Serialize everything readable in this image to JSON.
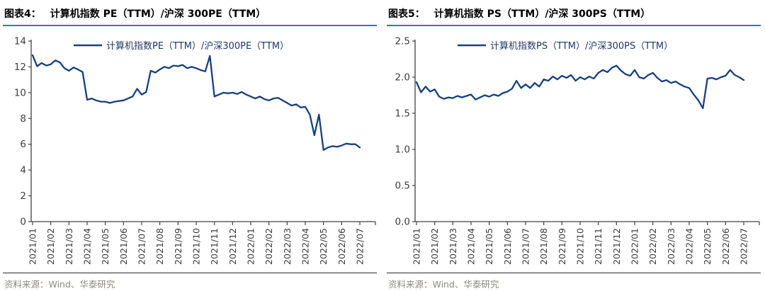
{
  "figure4": {
    "label": "图表4：",
    "title": "计算机指数 PE（TTM）/沪深 300PE（TTM）",
    "source": "资料来源：Wind、华泰研究"
  },
  "figure5": {
    "label": "图表5：",
    "title": "计算机指数 PS（TTM）/沪深 300PS（TTM）",
    "source": "资料来源：Wind、华泰研究"
  },
  "colors": {
    "series_line": "#16407f",
    "legend_text": "#1f3864",
    "title_underline": "#4a6fa4",
    "axis": "#404040",
    "tick_label": "#3d3d3d",
    "source_text": "#8b8a83",
    "source_rule": "#2b2b2b"
  },
  "chart_data": [
    {
      "id": "figure4",
      "type": "line",
      "title": "计算机指数 PE（TTM）/沪深 300PE（TTM）",
      "legend": "计算机指数PE（TTM）/沪深300PE（TTM）",
      "legend_position": "top-center",
      "grid": false,
      "ylim": [
        0,
        14
      ],
      "y_ticks": [
        "0",
        "2",
        "4",
        "6",
        "8",
        "10",
        "12",
        "14"
      ],
      "x_labels": [
        "2021/01",
        "2021/02",
        "2021/03",
        "2021/04",
        "2021/05",
        "2021/06",
        "2021/07",
        "2021/08",
        "2021/09",
        "2021/10",
        "2021/11",
        "2021/12",
        "2022/01",
        "2022/02",
        "2022/03",
        "2022/04",
        "2022/05",
        "2022/06",
        "2022/07"
      ],
      "points_per_month": 4,
      "values": [
        12.9,
        12.05,
        12.3,
        12.1,
        12.2,
        12.5,
        12.35,
        11.9,
        11.7,
        11.95,
        11.8,
        11.6,
        9.45,
        9.55,
        9.4,
        9.3,
        9.3,
        9.2,
        9.3,
        9.35,
        9.4,
        9.55,
        9.7,
        10.3,
        9.85,
        10.05,
        11.7,
        11.55,
        11.8,
        12.0,
        11.9,
        12.1,
        12.05,
        12.15,
        11.9,
        12.0,
        11.9,
        11.75,
        11.65,
        12.85,
        9.7,
        9.85,
        10.0,
        9.95,
        10.0,
        9.9,
        10.05,
        9.85,
        9.7,
        9.55,
        9.7,
        9.5,
        9.4,
        9.55,
        9.6,
        9.4,
        9.2,
        9.0,
        9.1,
        8.85,
        8.9,
        8.3,
        6.7,
        8.3,
        5.55,
        5.75,
        5.85,
        5.8,
        5.9,
        6.05,
        6.0,
        6.0,
        5.75
      ],
      "line_color": "#16407f"
    },
    {
      "id": "figure5",
      "type": "line",
      "title": "计算机指数 PS（TTM）/沪深 300PS（TTM）",
      "legend": "计算机指数PS（TTM）/沪深300PS（TTM）",
      "legend_position": "top-center",
      "grid": false,
      "ylim": [
        0,
        2.5
      ],
      "y_ticks": [
        "0.0",
        "0.5",
        "1.0",
        "1.5",
        "2.0",
        "2.5"
      ],
      "x_labels": [
        "2021/01",
        "2021/02",
        "2021/03",
        "2021/04",
        "2021/05",
        "2021/06",
        "2021/07",
        "2021/08",
        "2021/09",
        "2021/10",
        "2021/11",
        "2021/12",
        "2022/01",
        "2022/02",
        "2022/03",
        "2022/04",
        "2022/05",
        "2022/06",
        "2022/07"
      ],
      "points_per_month": 4,
      "values": [
        1.93,
        1.79,
        1.87,
        1.8,
        1.83,
        1.73,
        1.7,
        1.72,
        1.71,
        1.74,
        1.72,
        1.74,
        1.76,
        1.69,
        1.72,
        1.75,
        1.73,
        1.76,
        1.74,
        1.78,
        1.8,
        1.84,
        1.95,
        1.85,
        1.9,
        1.85,
        1.92,
        1.87,
        1.97,
        1.95,
        2.01,
        1.97,
        2.02,
        1.99,
        2.03,
        1.95,
        2.0,
        1.97,
        2.01,
        1.98,
        2.06,
        2.1,
        2.07,
        2.13,
        2.16,
        2.09,
        2.04,
        2.02,
        2.1,
        2.0,
        1.98,
        2.03,
        2.06,
        1.99,
        1.94,
        1.96,
        1.92,
        1.94,
        1.9,
        1.87,
        1.85,
        1.76,
        1.68,
        1.57,
        1.98,
        1.99,
        1.97,
        2.0,
        2.02,
        2.1,
        2.03,
        2.0,
        1.96
      ],
      "line_color": "#16407f"
    }
  ]
}
